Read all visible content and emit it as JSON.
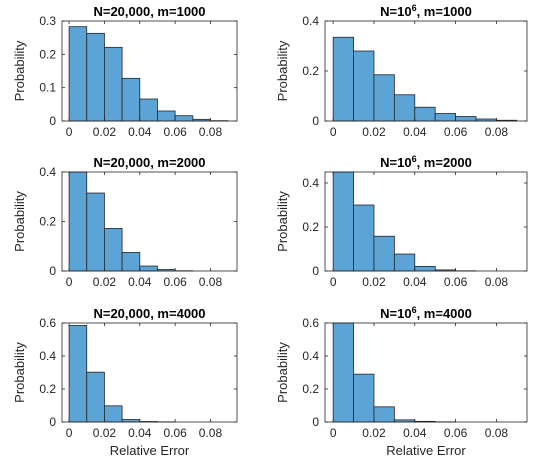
{
  "chart_data": [
    {
      "type": "bar",
      "title": "N=20,000, m=1000",
      "xlabel": "",
      "ylabel": "Probability",
      "xlim": [
        -0.004,
        0.095
      ],
      "ylim": [
        0,
        0.3
      ],
      "xticks": [
        0,
        0.02,
        0.04,
        0.06,
        0.08
      ],
      "xtick_labels": [
        "0",
        "0.02",
        "0.04",
        "0.06",
        "0.08"
      ],
      "yticks": [
        0,
        0.1,
        0.2,
        0.3
      ],
      "ytick_labels": [
        "0",
        "0.1",
        "0.2",
        "0.3"
      ],
      "bin_edges": [
        0,
        0.01,
        0.02,
        0.03,
        0.04,
        0.05,
        0.06,
        0.07,
        0.08,
        0.09
      ],
      "values": [
        0.283,
        0.263,
        0.221,
        0.128,
        0.066,
        0.03,
        0.016,
        0.005,
        0.001
      ],
      "bar_color": "#5ca3d6"
    },
    {
      "type": "bar",
      "title_main": "N=10",
      "title_sup": "6",
      "title_rest": ", m=1000",
      "xlabel": "",
      "ylabel": "Probability",
      "xlim": [
        -0.004,
        0.095
      ],
      "ylim": [
        0,
        0.4
      ],
      "xticks": [
        0,
        0.02,
        0.04,
        0.06,
        0.08
      ],
      "xtick_labels": [
        "0",
        "0.02",
        "0.04",
        "0.06",
        "0.08"
      ],
      "yticks": [
        0,
        0.2,
        0.4
      ],
      "ytick_labels": [
        "0",
        "0.2",
        "0.4"
      ],
      "bin_edges": [
        0,
        0.01,
        0.02,
        0.03,
        0.04,
        0.05,
        0.06,
        0.07,
        0.08,
        0.09
      ],
      "values": [
        0.335,
        0.28,
        0.185,
        0.105,
        0.055,
        0.03,
        0.018,
        0.008,
        0.003
      ],
      "bar_color": "#5ca3d6"
    },
    {
      "type": "bar",
      "title": "N=20,000, m=2000",
      "xlabel": "",
      "ylabel": "Probability",
      "xlim": [
        -0.004,
        0.095
      ],
      "ylim": [
        0,
        0.4
      ],
      "xticks": [
        0,
        0.02,
        0.04,
        0.06,
        0.08
      ],
      "xtick_labels": [
        "0",
        "0.02",
        "0.04",
        "0.06",
        "0.08"
      ],
      "yticks": [
        0,
        0.2,
        0.4
      ],
      "ytick_labels": [
        "0",
        "0.2",
        "0.4"
      ],
      "bin_edges": [
        0,
        0.01,
        0.02,
        0.03,
        0.04,
        0.05,
        0.06,
        0.07,
        0.08,
        0.09
      ],
      "values": [
        0.42,
        0.315,
        0.172,
        0.075,
        0.02,
        0.006,
        0.001,
        0,
        0
      ],
      "bar_color": "#5ca3d6"
    },
    {
      "type": "bar",
      "title_main": "N=10",
      "title_sup": "6",
      "title_rest": ", m=2000",
      "xlabel": "",
      "ylabel": "Probability",
      "xlim": [
        -0.004,
        0.095
      ],
      "ylim": [
        0,
        0.45
      ],
      "xticks": [
        0,
        0.02,
        0.04,
        0.06,
        0.08
      ],
      "xtick_labels": [
        "0",
        "0.02",
        "0.04",
        "0.06",
        "0.08"
      ],
      "yticks": [
        0,
        0.2,
        0.4
      ],
      "ytick_labels": [
        "0",
        "0.2",
        "0.4"
      ],
      "bin_edges": [
        0,
        0.01,
        0.02,
        0.03,
        0.04,
        0.05,
        0.06,
        0.07,
        0.08,
        0.09
      ],
      "values": [
        0.45,
        0.3,
        0.158,
        0.077,
        0.021,
        0.005,
        0.001,
        0,
        0
      ],
      "bar_color": "#5ca3d6"
    },
    {
      "type": "bar",
      "title": "N=20,000, m=4000",
      "xlabel": "Relative Error",
      "ylabel": "Probability",
      "xlim": [
        -0.004,
        0.095
      ],
      "ylim": [
        0,
        0.6
      ],
      "xticks": [
        0,
        0.02,
        0.04,
        0.06,
        0.08
      ],
      "xtick_labels": [
        "0",
        "0.02",
        "0.04",
        "0.06",
        "0.08"
      ],
      "yticks": [
        0,
        0.2,
        0.4,
        0.6
      ],
      "ytick_labels": [
        "0",
        "0.2",
        "0.4",
        "0.6"
      ],
      "bin_edges": [
        0,
        0.01,
        0.02,
        0.03,
        0.04,
        0.05,
        0.06,
        0.07,
        0.08,
        0.09
      ],
      "values": [
        0.585,
        0.302,
        0.098,
        0.015,
        0.003,
        0.001,
        0,
        0,
        0
      ],
      "bar_color": "#5ca3d6"
    },
    {
      "type": "bar",
      "title_main": "N=10",
      "title_sup": "6",
      "title_rest": ", m=4000",
      "xlabel": "Relative Error",
      "ylabel": "Probability",
      "xlim": [
        -0.004,
        0.095
      ],
      "ylim": [
        0,
        0.6
      ],
      "xticks": [
        0,
        0.02,
        0.04,
        0.06,
        0.08
      ],
      "xtick_labels": [
        "0",
        "0.02",
        "0.04",
        "0.06",
        "0.08"
      ],
      "yticks": [
        0,
        0.2,
        0.4,
        0.6
      ],
      "ytick_labels": [
        "0",
        "0.2",
        "0.4",
        "0.6"
      ],
      "bin_edges": [
        0,
        0.01,
        0.02,
        0.03,
        0.04,
        0.05,
        0.06,
        0.07,
        0.08,
        0.09
      ],
      "values": [
        0.6,
        0.29,
        0.092,
        0.013,
        0.004,
        0.001,
        0,
        0,
        0
      ],
      "bar_color": "#5ca3d6"
    }
  ]
}
